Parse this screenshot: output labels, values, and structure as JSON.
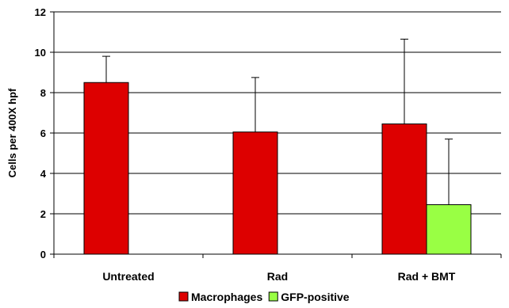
{
  "chart_data": {
    "type": "bar",
    "categories": [
      "Untreated",
      "Rad",
      "Rad + BMT"
    ],
    "series": [
      {
        "name": "Macrophages",
        "color": "#dd0000",
        "values": [
          8.5,
          6.05,
          6.45
        ],
        "errors": [
          1.3,
          2.7,
          4.2
        ]
      },
      {
        "name": "GFP-positive",
        "color": "#99ff44",
        "values": [
          null,
          null,
          2.45
        ],
        "errors": [
          null,
          null,
          3.25
        ]
      }
    ],
    "ylabel": "Cells per 400X hpf",
    "ylim": [
      0,
      12
    ],
    "yticks": [
      0,
      2,
      4,
      6,
      8,
      10,
      12
    ],
    "grid": true,
    "legend": "bottom"
  }
}
